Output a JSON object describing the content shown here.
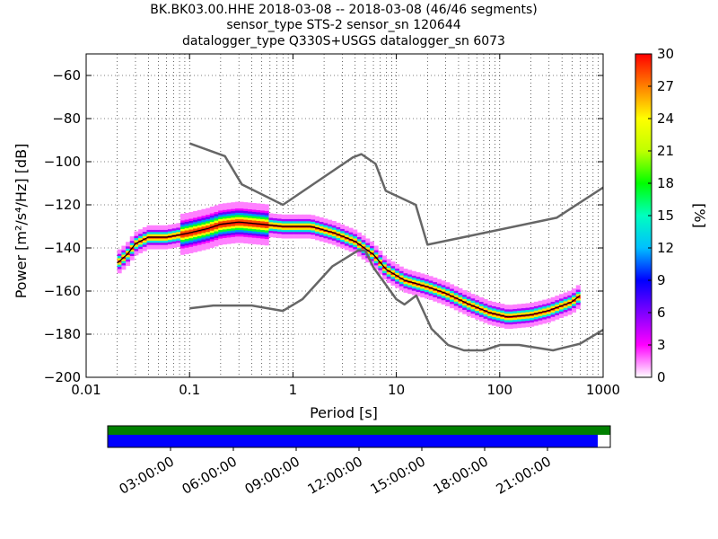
{
  "title": {
    "line1": "BK.BK03.00.HHE   2018-03-08 -- 2018-03-08  (46/46 segments)",
    "line2": "sensor_type STS-2 sensor_sn 120644",
    "line3": "datalogger_type Q330S+USGS datalogger_sn 6073"
  },
  "chart_data": {
    "type": "heatmap",
    "xlabel": "Period [s]",
    "ylabel": "Power [m²/s⁴/Hz] [dB]",
    "x_scale": "log",
    "xlim": [
      0.01,
      1000
    ],
    "ylim": [
      -200,
      -50
    ],
    "x_ticks": [
      0.01,
      0.1,
      1,
      10,
      100,
      1000
    ],
    "x_tick_labels": [
      "0.01",
      "0.1",
      "1",
      "10",
      "100",
      "1000"
    ],
    "y_ticks": [
      -200,
      -180,
      -160,
      -140,
      -120,
      -100,
      -80,
      -60
    ],
    "y_tick_labels": [
      "−200",
      "−180",
      "−160",
      "−140",
      "−120",
      "−100",
      "−80",
      "−60"
    ],
    "grid": true,
    "colorbar": {
      "label": "[%]",
      "min": 0,
      "max": 30,
      "ticks": [
        0,
        3,
        6,
        9,
        12,
        15,
        18,
        21,
        24,
        27,
        30
      ],
      "colormap": [
        "#ffffff",
        "#ff00ff",
        "#7f00ff",
        "#0000ff",
        "#00bfff",
        "#00ffbf",
        "#00ff00",
        "#bfff00",
        "#ffff00",
        "#ff8000",
        "#ff0000"
      ]
    },
    "median_curve": {
      "periods": [
        0.02,
        0.025,
        0.03,
        0.04,
        0.06,
        0.1,
        0.15,
        0.2,
        0.3,
        0.5,
        0.8,
        1.5,
        2.5,
        4,
        6,
        8,
        12,
        20,
        30,
        50,
        80,
        120,
        200,
        300,
        500,
        600
      ],
      "power": [
        -147,
        -143,
        -138,
        -135,
        -135,
        -133,
        -131,
        -129,
        -128,
        -129,
        -130,
        -130,
        -133,
        -137,
        -143,
        -150,
        -155,
        -158,
        -161,
        -166,
        -170,
        -172,
        -171,
        -169,
        -165,
        -162
      ]
    },
    "nhnm": {
      "periods": [
        0.1,
        0.22,
        0.32,
        0.8,
        3.8,
        4.6,
        6.3,
        7.9,
        15.4,
        20,
        354.8,
        1000
      ],
      "power": [
        -91.5,
        -97.4,
        -110.5,
        -120,
        -98,
        -96.5,
        -101,
        -113.5,
        -120,
        -138.5,
        -126,
        -112
      ]
    },
    "nlnm": {
      "periods": [
        0.1,
        0.17,
        0.4,
        0.8,
        1.24,
        2.4,
        4.3,
        5,
        6,
        10,
        12,
        15.6,
        21.9,
        31.6,
        45,
        70,
        101,
        154,
        328,
        600,
        1000
      ],
      "power": [
        -168,
        -166.7,
        -166.7,
        -169.2,
        -163.7,
        -148.6,
        -141.1,
        -141.1,
        -149,
        -163.8,
        -166.2,
        -162.1,
        -177.5,
        -185,
        -187.5,
        -187.5,
        -185,
        -185,
        -187.5,
        -184.4,
        -178
      ]
    },
    "time_axis": {
      "tick_labels": [
        "03:00:00",
        "06:00:00",
        "09:00:00",
        "12:00:00",
        "15:00:00",
        "18:00:00",
        "21:00:00"
      ],
      "data_coverage_fraction": 1.0,
      "processed_fraction": 0.975,
      "data_color": "#008000",
      "processed_color": "#0000ff"
    }
  }
}
